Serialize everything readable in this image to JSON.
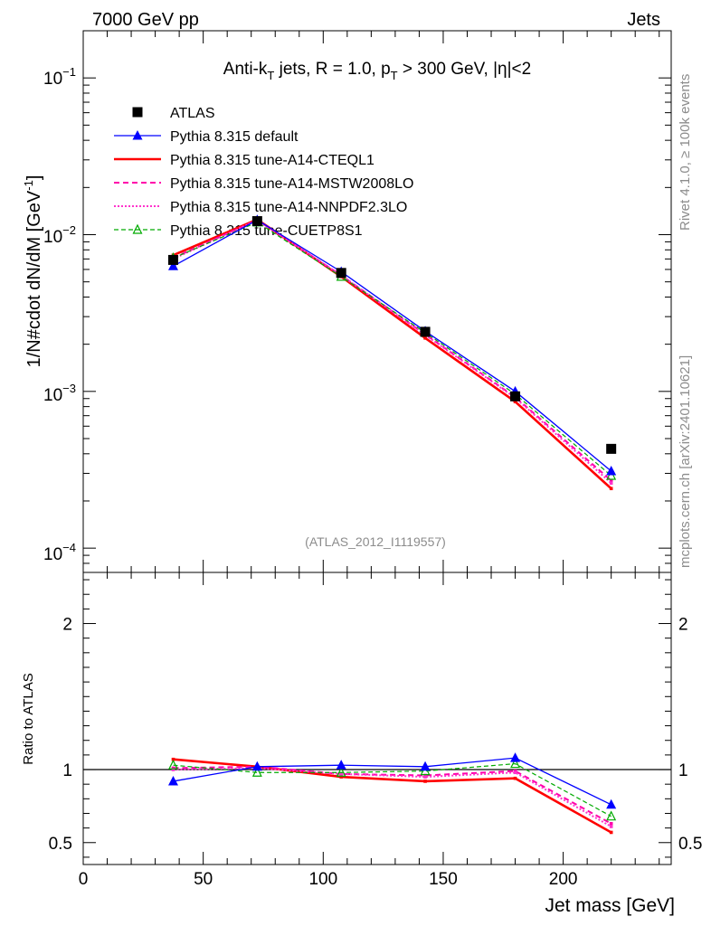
{
  "header": {
    "left": "7000 GeV pp",
    "right": "Jets"
  },
  "side_text": {
    "top": "Rivet 4.1.0, ≥ 100k events",
    "bottom": "mcplots.cern.ch [arXiv:2401.10621]"
  },
  "analysis_label": "(ATLAS_2012_I1119557)",
  "chart_data": [
    {
      "type": "line",
      "panel": "main",
      "title": "Anti-kT jets, R = 1.0, pT > 300 GeV, |η|<2",
      "title_parts": {
        "a": "Anti-k",
        "a_sub": "T",
        "b": " jets, R = 1.0, p",
        "b_sub": "T",
        "c": " > 300 GeV, |η|<2"
      },
      "xlabel": "Jet mass [GeV]",
      "ylabel": "1/N#cdot dN/dM [GeV",
      "ylabel_sup": "-1",
      "ylabel_end": "]",
      "yscale": "log",
      "xlim": [
        0,
        245
      ],
      "ylim": [
        7e-05,
        0.2
      ],
      "x_ticks": [
        "0",
        "50",
        "100",
        "150",
        "200"
      ],
      "y_ticks": [
        {
          "base": "10",
          "exp": "−1",
          "value": 0.1
        },
        {
          "base": "10",
          "exp": "−2",
          "value": 0.01
        },
        {
          "base": "10",
          "exp": "−3",
          "value": 0.001
        },
        {
          "base": "10",
          "exp": "−4",
          "value": 0.0001
        }
      ],
      "x": [
        37.5,
        72.5,
        107.5,
        142.5,
        180,
        220
      ],
      "series": [
        {
          "name": "ATLAS",
          "color": "#000000",
          "style": "data",
          "marker": "square",
          "values": [
            0.0069,
            0.0122,
            0.0057,
            0.0024,
            0.00093,
            0.00043
          ]
        },
        {
          "name": "Pythia 8.315 default",
          "color": "#0000ff",
          "style": "solid",
          "marker": "triangle",
          "values": [
            0.0063,
            0.0124,
            0.0058,
            0.00242,
            0.001,
            0.00031
          ]
        },
        {
          "name": "Pythia 8.315 tune-A14-CTEQL1",
          "color": "#ff0000",
          "style": "solid-thick",
          "marker": "",
          "values": [
            0.0074,
            0.0125,
            0.0054,
            0.00219,
            0.00086,
            0.00024
          ]
        },
        {
          "name": "Pythia 8.315 tune-A14-MSTW2008LO",
          "color": "#ff00aa",
          "style": "dashed",
          "marker": "",
          "values": [
            0.0071,
            0.0124,
            0.0055,
            0.00231,
            0.00092,
            0.00027
          ]
        },
        {
          "name": "Pythia 8.315 tune-A14-NNPDF2.3LO",
          "color": "#ff33cc",
          "style": "dotted",
          "marker": "",
          "values": [
            0.007,
            0.0124,
            0.0055,
            0.00229,
            0.00091,
            0.00026
          ]
        },
        {
          "name": "Pythia 8.315 tune-CUETP8S1",
          "color": "#00aa00",
          "style": "dashed-thin",
          "marker": "open-triangle",
          "values": [
            0.0071,
            0.012,
            0.0054,
            0.00237,
            0.00096,
            0.00029
          ]
        }
      ]
    },
    {
      "type": "line",
      "panel": "ratio",
      "ylabel": "Ratio to ATLAS",
      "xlabel": "Jet mass [GeV]",
      "ylim": [
        0.35,
        2.35
      ],
      "y_ticks": [
        "0.5",
        "1",
        "2"
      ],
      "reference": 1.0,
      "x": [
        37.5,
        72.5,
        107.5,
        142.5,
        180,
        220
      ],
      "series": [
        {
          "name": "Pythia 8.315 default",
          "color": "#0000ff",
          "values": [
            0.92,
            1.02,
            1.03,
            1.02,
            1.08,
            0.76
          ]
        },
        {
          "name": "Pythia 8.315 tune-A14-CTEQL1",
          "color": "#ff0000",
          "values": [
            1.07,
            1.02,
            0.95,
            0.92,
            0.94,
            0.57
          ]
        },
        {
          "name": "Pythia 8.315 tune-A14-MSTW2008LO",
          "color": "#ff00aa",
          "values": [
            1.01,
            1.02,
            0.97,
            0.96,
            0.99,
            0.63
          ]
        },
        {
          "name": "Pythia 8.315 tune-A14-NNPDF2.3LO",
          "color": "#ff33cc",
          "values": [
            1.0,
            1.01,
            0.97,
            0.95,
            0.98,
            0.61
          ]
        },
        {
          "name": "Pythia 8.315 tune-CUETP8S1",
          "color": "#00aa00",
          "values": [
            1.03,
            0.98,
            0.98,
            0.99,
            1.04,
            0.68
          ]
        }
      ]
    }
  ]
}
